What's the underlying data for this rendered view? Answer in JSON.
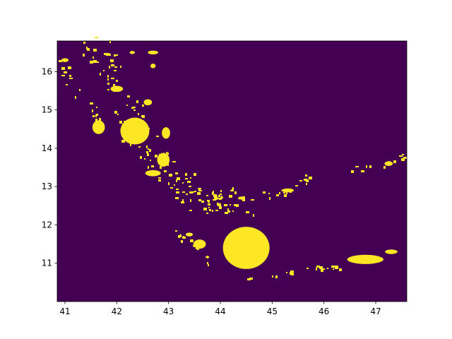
{
  "chart_data": {
    "type": "heatmap",
    "title": "",
    "xlabel": "",
    "ylabel": "",
    "xlim": [
      40.85,
      47.6
    ],
    "ylim": [
      10.0,
      16.8
    ],
    "xticks": [
      {
        "value": 41,
        "label": "41"
      },
      {
        "value": 42,
        "label": "42"
      },
      {
        "value": 43,
        "label": "43"
      },
      {
        "value": 44,
        "label": "44"
      },
      {
        "value": 45,
        "label": "45"
      },
      {
        "value": 46,
        "label": "46"
      },
      {
        "value": 47,
        "label": "47"
      }
    ],
    "yticks": [
      {
        "value": 11,
        "label": "11"
      },
      {
        "value": 12,
        "label": "12"
      },
      {
        "value": 13,
        "label": "13"
      },
      {
        "value": 14,
        "label": "14"
      },
      {
        "value": 15,
        "label": "15"
      },
      {
        "value": 16,
        "label": "16"
      }
    ],
    "colormap": "viridis",
    "background_color": "#440154",
    "foreground_color": "#fde725",
    "grid": false,
    "blobs": [
      {
        "cx": 42.35,
        "cy": 14.45,
        "rx": 0.28,
        "ry": 0.35
      },
      {
        "cx": 44.5,
        "cy": 11.4,
        "rx": 0.45,
        "ry": 0.55
      },
      {
        "cx": 46.8,
        "cy": 11.1,
        "rx": 0.35,
        "ry": 0.12
      },
      {
        "cx": 41.65,
        "cy": 14.55,
        "rx": 0.12,
        "ry": 0.18
      },
      {
        "cx": 42.9,
        "cy": 13.7,
        "rx": 0.12,
        "ry": 0.18
      },
      {
        "cx": 43.6,
        "cy": 11.5,
        "rx": 0.12,
        "ry": 0.12
      },
      {
        "cx": 42.95,
        "cy": 14.4,
        "rx": 0.08,
        "ry": 0.15
      },
      {
        "cx": 42.0,
        "cy": 15.55,
        "rx": 0.12,
        "ry": 0.08
      },
      {
        "cx": 47.3,
        "cy": 11.3,
        "rx": 0.12,
        "ry": 0.06
      },
      {
        "cx": 42.6,
        "cy": 15.2,
        "rx": 0.08,
        "ry": 0.08
      },
      {
        "cx": 42.7,
        "cy": 13.35,
        "rx": 0.15,
        "ry": 0.08
      },
      {
        "cx": 45.3,
        "cy": 12.9,
        "rx": 0.12,
        "ry": 0.05
      },
      {
        "cx": 47.25,
        "cy": 13.6,
        "rx": 0.08,
        "ry": 0.06
      },
      {
        "cx": 42.7,
        "cy": 16.5,
        "rx": 0.1,
        "ry": 0.05
      },
      {
        "cx": 41.0,
        "cy": 16.3,
        "rx": 0.07,
        "ry": 0.05
      },
      {
        "cx": 42.3,
        "cy": 16.5,
        "rx": 0.05,
        "ry": 0.04
      },
      {
        "cx": 43.4,
        "cy": 11.75,
        "rx": 0.07,
        "ry": 0.05
      },
      {
        "cx": 44.4,
        "cy": 12.7,
        "rx": 0.06,
        "ry": 0.04
      },
      {
        "cx": 42.7,
        "cy": 16.15,
        "rx": 0.05,
        "ry": 0.06
      }
    ]
  }
}
